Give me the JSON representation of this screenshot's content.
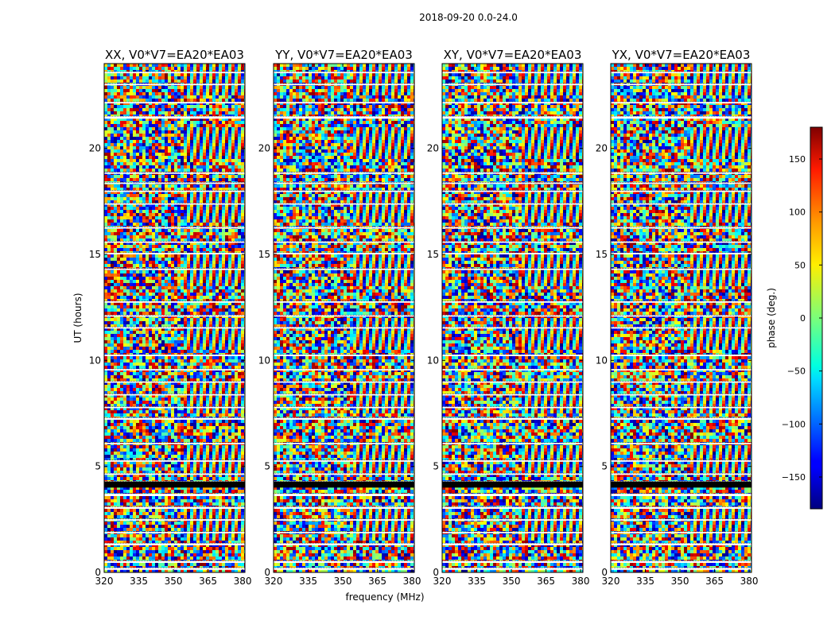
{
  "chart_data": {
    "type": "heatmap",
    "title": "2018-09-20 0.0-24.0",
    "xlabel": "frequency (MHz)",
    "ylabel": "UT (hours)",
    "xlim": [
      320,
      381
    ],
    "ylim": [
      0,
      24
    ],
    "xticks": [
      320,
      335,
      350,
      365,
      380
    ],
    "yticks": [
      0,
      5,
      10,
      15,
      20
    ],
    "panels": [
      {
        "title": "XX, V0*V7=EA20*EA03"
      },
      {
        "title": "YY, V0*V7=EA20*EA03"
      },
      {
        "title": "XY, V0*V7=EA20*EA03"
      },
      {
        "title": "YX, V0*V7=EA20*EA03"
      }
    ],
    "colorbar": {
      "label": "phase (deg.)",
      "range": [
        -180,
        180
      ],
      "ticks": [
        150,
        100,
        50,
        0,
        -50,
        -100,
        -150
      ],
      "tick_labels": [
        "150",
        "100",
        "50",
        "0",
        "−50",
        "−100",
        "−150"
      ],
      "colormap": "jet"
    },
    "flagged_hours": [
      [
        0.12,
        0.22
      ],
      [
        0.45,
        0.55
      ],
      [
        1.28,
        1.38
      ],
      [
        1.85,
        1.92
      ],
      [
        2.44,
        2.52
      ],
      [
        3.0,
        3.1
      ],
      [
        3.6,
        3.72
      ],
      [
        4.28,
        4.3
      ],
      [
        4.6,
        4.68
      ],
      [
        5.22,
        5.3
      ],
      [
        6.05,
        6.12
      ],
      [
        7.2,
        7.3
      ],
      [
        7.75,
        7.82
      ],
      [
        8.35,
        8.42
      ],
      [
        8.95,
        9.02
      ],
      [
        9.55,
        9.6
      ],
      [
        10.2,
        10.28
      ],
      [
        11.5,
        11.58
      ],
      [
        12.08,
        12.14
      ],
      [
        12.72,
        12.8
      ],
      [
        14.28,
        14.34
      ],
      [
        15.0,
        15.08
      ],
      [
        15.55,
        15.62
      ],
      [
        16.22,
        16.3
      ],
      [
        17.35,
        17.42
      ],
      [
        17.95,
        18.02
      ],
      [
        18.35,
        18.4
      ],
      [
        18.8,
        18.88
      ],
      [
        21.4,
        21.52
      ],
      [
        22.12,
        22.2
      ],
      [
        22.98,
        23.06
      ],
      [
        23.55,
        23.62
      ]
    ],
    "dark_bands": [
      [
        4.0,
        4.28
      ]
    ]
  }
}
